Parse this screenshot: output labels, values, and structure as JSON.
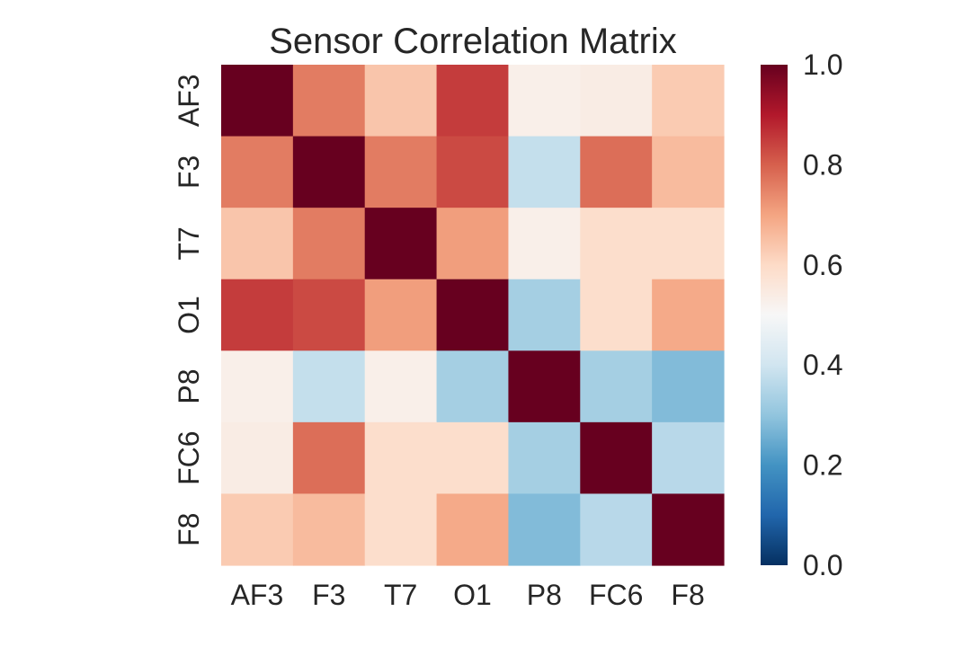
{
  "chart_data": {
    "type": "heatmap",
    "title": "Sensor Correlation Matrix",
    "xlabel": "",
    "ylabel": "",
    "x_categories": [
      "AF3",
      "F3",
      "T7",
      "O1",
      "P8",
      "FC6",
      "F8"
    ],
    "y_categories": [
      "AF3",
      "F3",
      "T7",
      "O1",
      "P8",
      "FC6",
      "F8"
    ],
    "values": [
      [
        1.0,
        0.76,
        0.64,
        0.85,
        0.53,
        0.54,
        0.63
      ],
      [
        0.76,
        1.0,
        0.76,
        0.83,
        0.38,
        0.78,
        0.66
      ],
      [
        0.64,
        0.76,
        1.0,
        0.71,
        0.53,
        0.59,
        0.59
      ],
      [
        0.85,
        0.83,
        0.71,
        1.0,
        0.33,
        0.59,
        0.69
      ],
      [
        0.53,
        0.38,
        0.53,
        0.33,
        1.0,
        0.33,
        0.28
      ],
      [
        0.54,
        0.78,
        0.59,
        0.59,
        0.33,
        1.0,
        0.36
      ],
      [
        0.63,
        0.66,
        0.59,
        0.69,
        0.28,
        0.36,
        1.0
      ]
    ],
    "colorbar": {
      "range": [
        0.0,
        1.0
      ],
      "ticks": [
        "0.0",
        "0.2",
        "0.4",
        "0.6",
        "0.8",
        "1.0"
      ],
      "colormap": "RdBu_r"
    }
  }
}
